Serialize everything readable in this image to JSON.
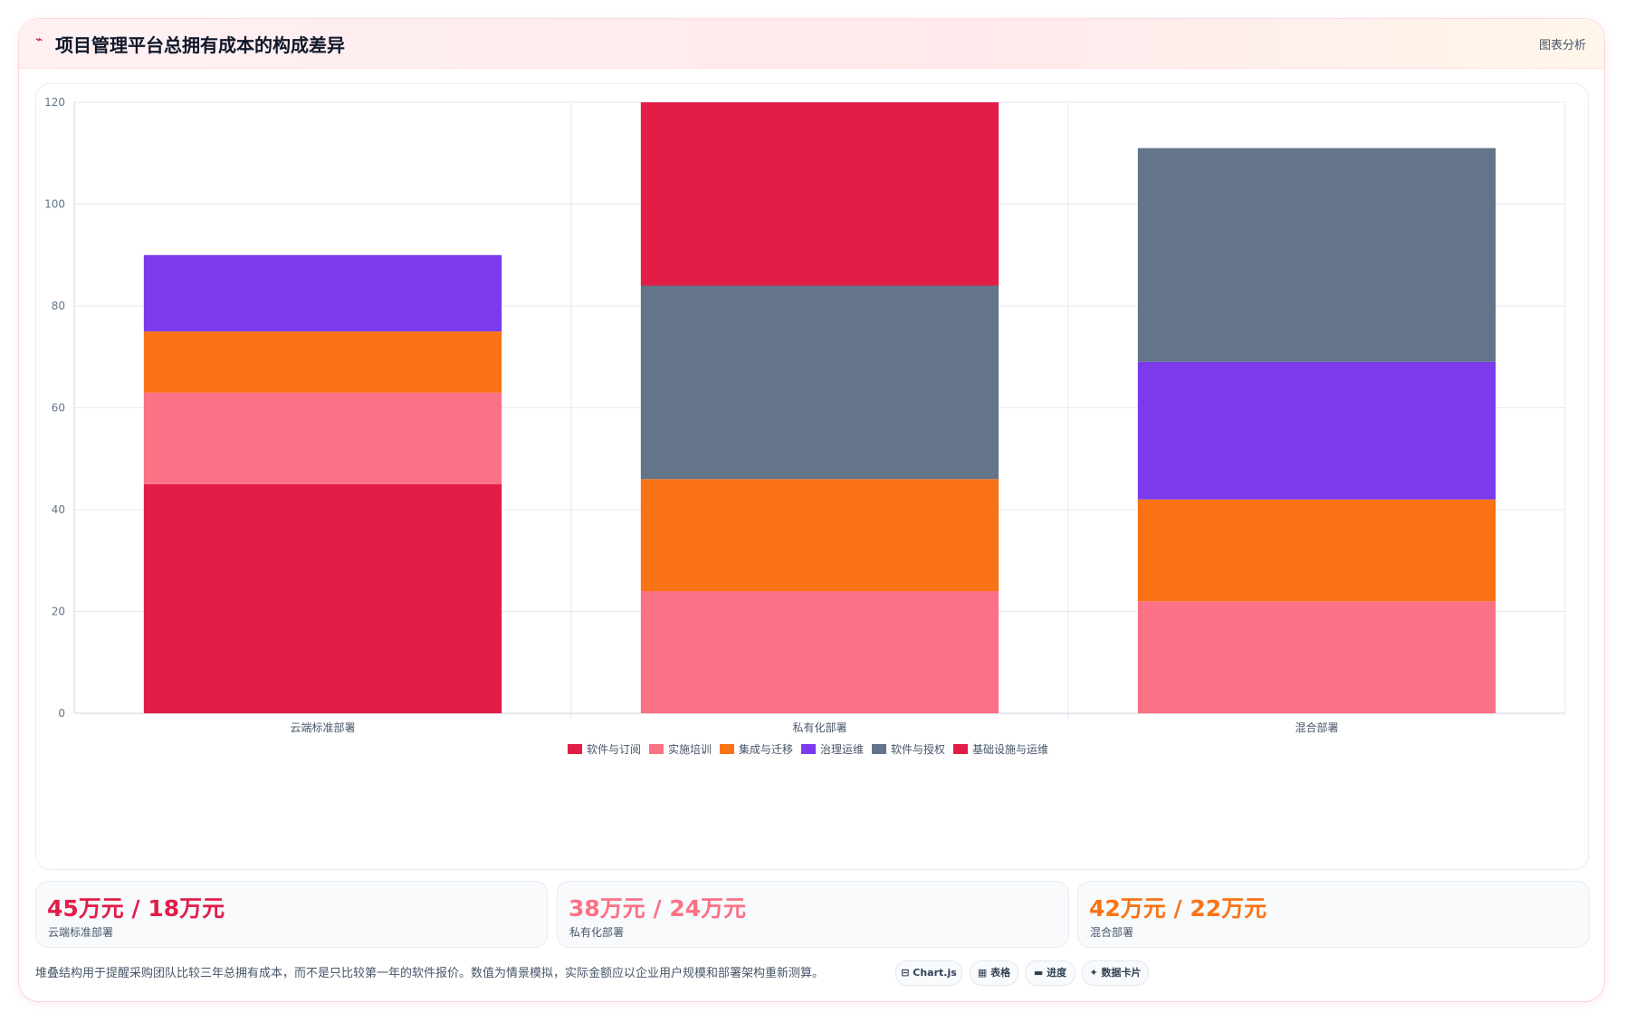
{
  "header": {
    "icon": "trend-line-icon",
    "title": "项目管理平台总拥有成本的构成差异",
    "action": "图表分析"
  },
  "chart_data": {
    "type": "bar",
    "stacked": true,
    "categories": [
      "云端标准部署",
      "私有化部署",
      "混合部署"
    ],
    "series": [
      {
        "name": "软件与订阅",
        "color": "#e11d48",
        "values": [
          45,
          0,
          0
        ]
      },
      {
        "name": "实施培训",
        "color": "#fb7185",
        "values": [
          18,
          24,
          22
        ]
      },
      {
        "name": "集成与迁移",
        "color": "#f97316",
        "values": [
          12,
          22,
          20
        ]
      },
      {
        "name": "治理运维",
        "color": "#7c3aed",
        "values": [
          15,
          0,
          27
        ]
      },
      {
        "name": "软件与授权",
        "color": "#64748b",
        "values": [
          0,
          38,
          42
        ]
      },
      {
        "name": "基础设施与运维",
        "color": "#e11d48",
        "values": [
          0,
          36,
          0
        ]
      }
    ],
    "ylim": [
      0,
      120
    ],
    "yticks": [
      "0",
      "20",
      "40",
      "60",
      "80",
      "100",
      "120"
    ],
    "grid": true,
    "legend": "bottom"
  },
  "stats": [
    {
      "value": "45万元 / 18万元",
      "label": "云端标准部署",
      "color": "#e11d48"
    },
    {
      "value": "38万元 / 24万元",
      "label": "私有化部署",
      "color": "#fb7185"
    },
    {
      "value": "42万元 / 22万元",
      "label": "混合部署",
      "color": "#f97316"
    }
  ],
  "footer": {
    "note": "堆叠结构用于提醒采购团队比较三年总拥有成本，而不是只比较第一年的软件报价。数值为情景模拟，实际金额应以企业用户规模和部署架构重新测算。",
    "chips": [
      {
        "icon": "chart-icon",
        "label": "⊟ Chart.js"
      },
      {
        "icon": "table-icon",
        "label": "▦ 表格"
      },
      {
        "icon": "progress-icon",
        "label": "▬ 进度"
      },
      {
        "icon": "data-card-icon",
        "label": "✦ 数据卡片"
      }
    ]
  }
}
